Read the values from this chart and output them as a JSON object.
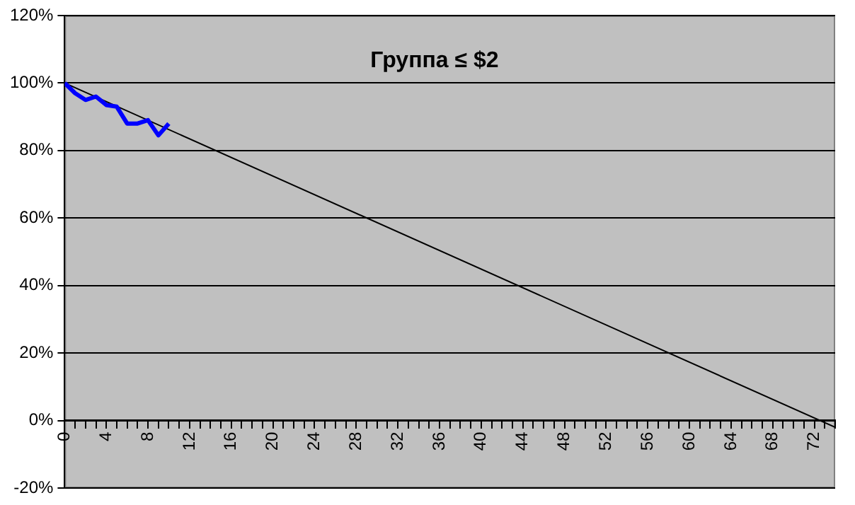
{
  "chart_data": {
    "type": "line",
    "title": "Группа ≤ $2",
    "series": [
      {
        "color": "#0000ff",
        "x": [
          0,
          1,
          2,
          3,
          4,
          5,
          6,
          7,
          8,
          9,
          10
        ],
        "values": [
          100,
          97,
          95,
          96,
          93.5,
          93,
          88,
          88,
          89,
          84.5,
          88
        ]
      },
      {
        "type": "line",
        "color": "#000000",
        "x": [
          0,
          74
        ],
        "values": [
          100,
          -2
        ]
      }
    ],
    "xlim": [
      0,
      74
    ],
    "xticks": [
      0,
      {
        "value": 1,
        "label": null
      },
      {
        "value": 2,
        "label": null
      },
      {
        "value": 3,
        "label": null
      },
      4,
      {
        "value": 5,
        "label": null
      },
      {
        "value": 6,
        "label": null
      },
      {
        "value": 7,
        "label": null
      },
      8,
      {
        "value": 9,
        "label": null
      },
      {
        "value": 10,
        "label": null
      },
      {
        "value": 11,
        "label": null
      },
      12,
      {
        "value": 13,
        "label": null
      },
      {
        "value": 14,
        "label": null
      },
      {
        "value": 15,
        "label": null
      },
      16,
      {
        "value": 17,
        "label": null
      },
      {
        "value": 18,
        "label": null
      },
      {
        "value": 19,
        "label": null
      },
      20,
      {
        "value": 21,
        "label": null
      },
      {
        "value": 22,
        "label": null
      },
      {
        "value": 23,
        "label": null
      },
      24,
      {
        "value": 25,
        "label": null
      },
      {
        "value": 26,
        "label": null
      },
      {
        "value": 27,
        "label": null
      },
      28,
      {
        "value": 29,
        "label": null
      },
      {
        "value": 30,
        "label": null
      },
      {
        "value": 31,
        "label": null
      },
      32,
      {
        "value": 33,
        "label": null
      },
      {
        "value": 34,
        "label": null
      },
      {
        "value": 35,
        "label": null
      },
      36,
      {
        "value": 37,
        "label": null
      },
      {
        "value": 38,
        "label": null
      },
      {
        "value": 39,
        "label": null
      },
      40,
      {
        "value": 41,
        "label": null
      },
      {
        "value": 42,
        "label": null
      },
      {
        "value": 43,
        "label": null
      },
      44,
      {
        "value": 45,
        "label": null
      },
      {
        "value": 46,
        "label": null
      },
      {
        "value": 47,
        "label": null
      },
      48,
      {
        "value": 49,
        "label": null
      },
      {
        "value": 50,
        "label": null
      },
      {
        "value": 51,
        "label": null
      },
      52,
      {
        "value": 53,
        "label": null
      },
      {
        "value": 54,
        "label": null
      },
      {
        "value": 55,
        "label": null
      },
      56,
      {
        "value": 57,
        "label": null
      },
      {
        "value": 58,
        "label": null
      },
      {
        "value": 59,
        "label": null
      },
      60,
      {
        "value": 61,
        "label": null
      },
      {
        "value": 62,
        "label": null
      },
      {
        "value": 63,
        "label": null
      },
      64,
      {
        "value": 65,
        "label": null
      },
      {
        "value": 66,
        "label": null
      },
      {
        "value": 67,
        "label": null
      },
      68,
      {
        "value": 69,
        "label": null
      },
      {
        "value": 70,
        "label": null
      },
      {
        "value": 71,
        "label": null
      },
      72,
      {
        "value": 73,
        "label": null
      },
      {
        "value": 74,
        "label": null
      }
    ],
    "ylim": [
      -20,
      120
    ],
    "yticks": [
      {
        "value": -20,
        "label": "-20%"
      },
      {
        "value": 0,
        "label": "0%"
      },
      {
        "value": 20,
        "label": "20%"
      },
      {
        "value": 40,
        "label": "40%"
      },
      {
        "value": 60,
        "label": "60%"
      },
      {
        "value": 80,
        "label": "80%"
      },
      {
        "value": 100,
        "label": "100%"
      },
      {
        "value": 120,
        "label": "120%"
      }
    ],
    "grid": "y",
    "legend": false,
    "marker": "none",
    "line_style": "solid"
  }
}
